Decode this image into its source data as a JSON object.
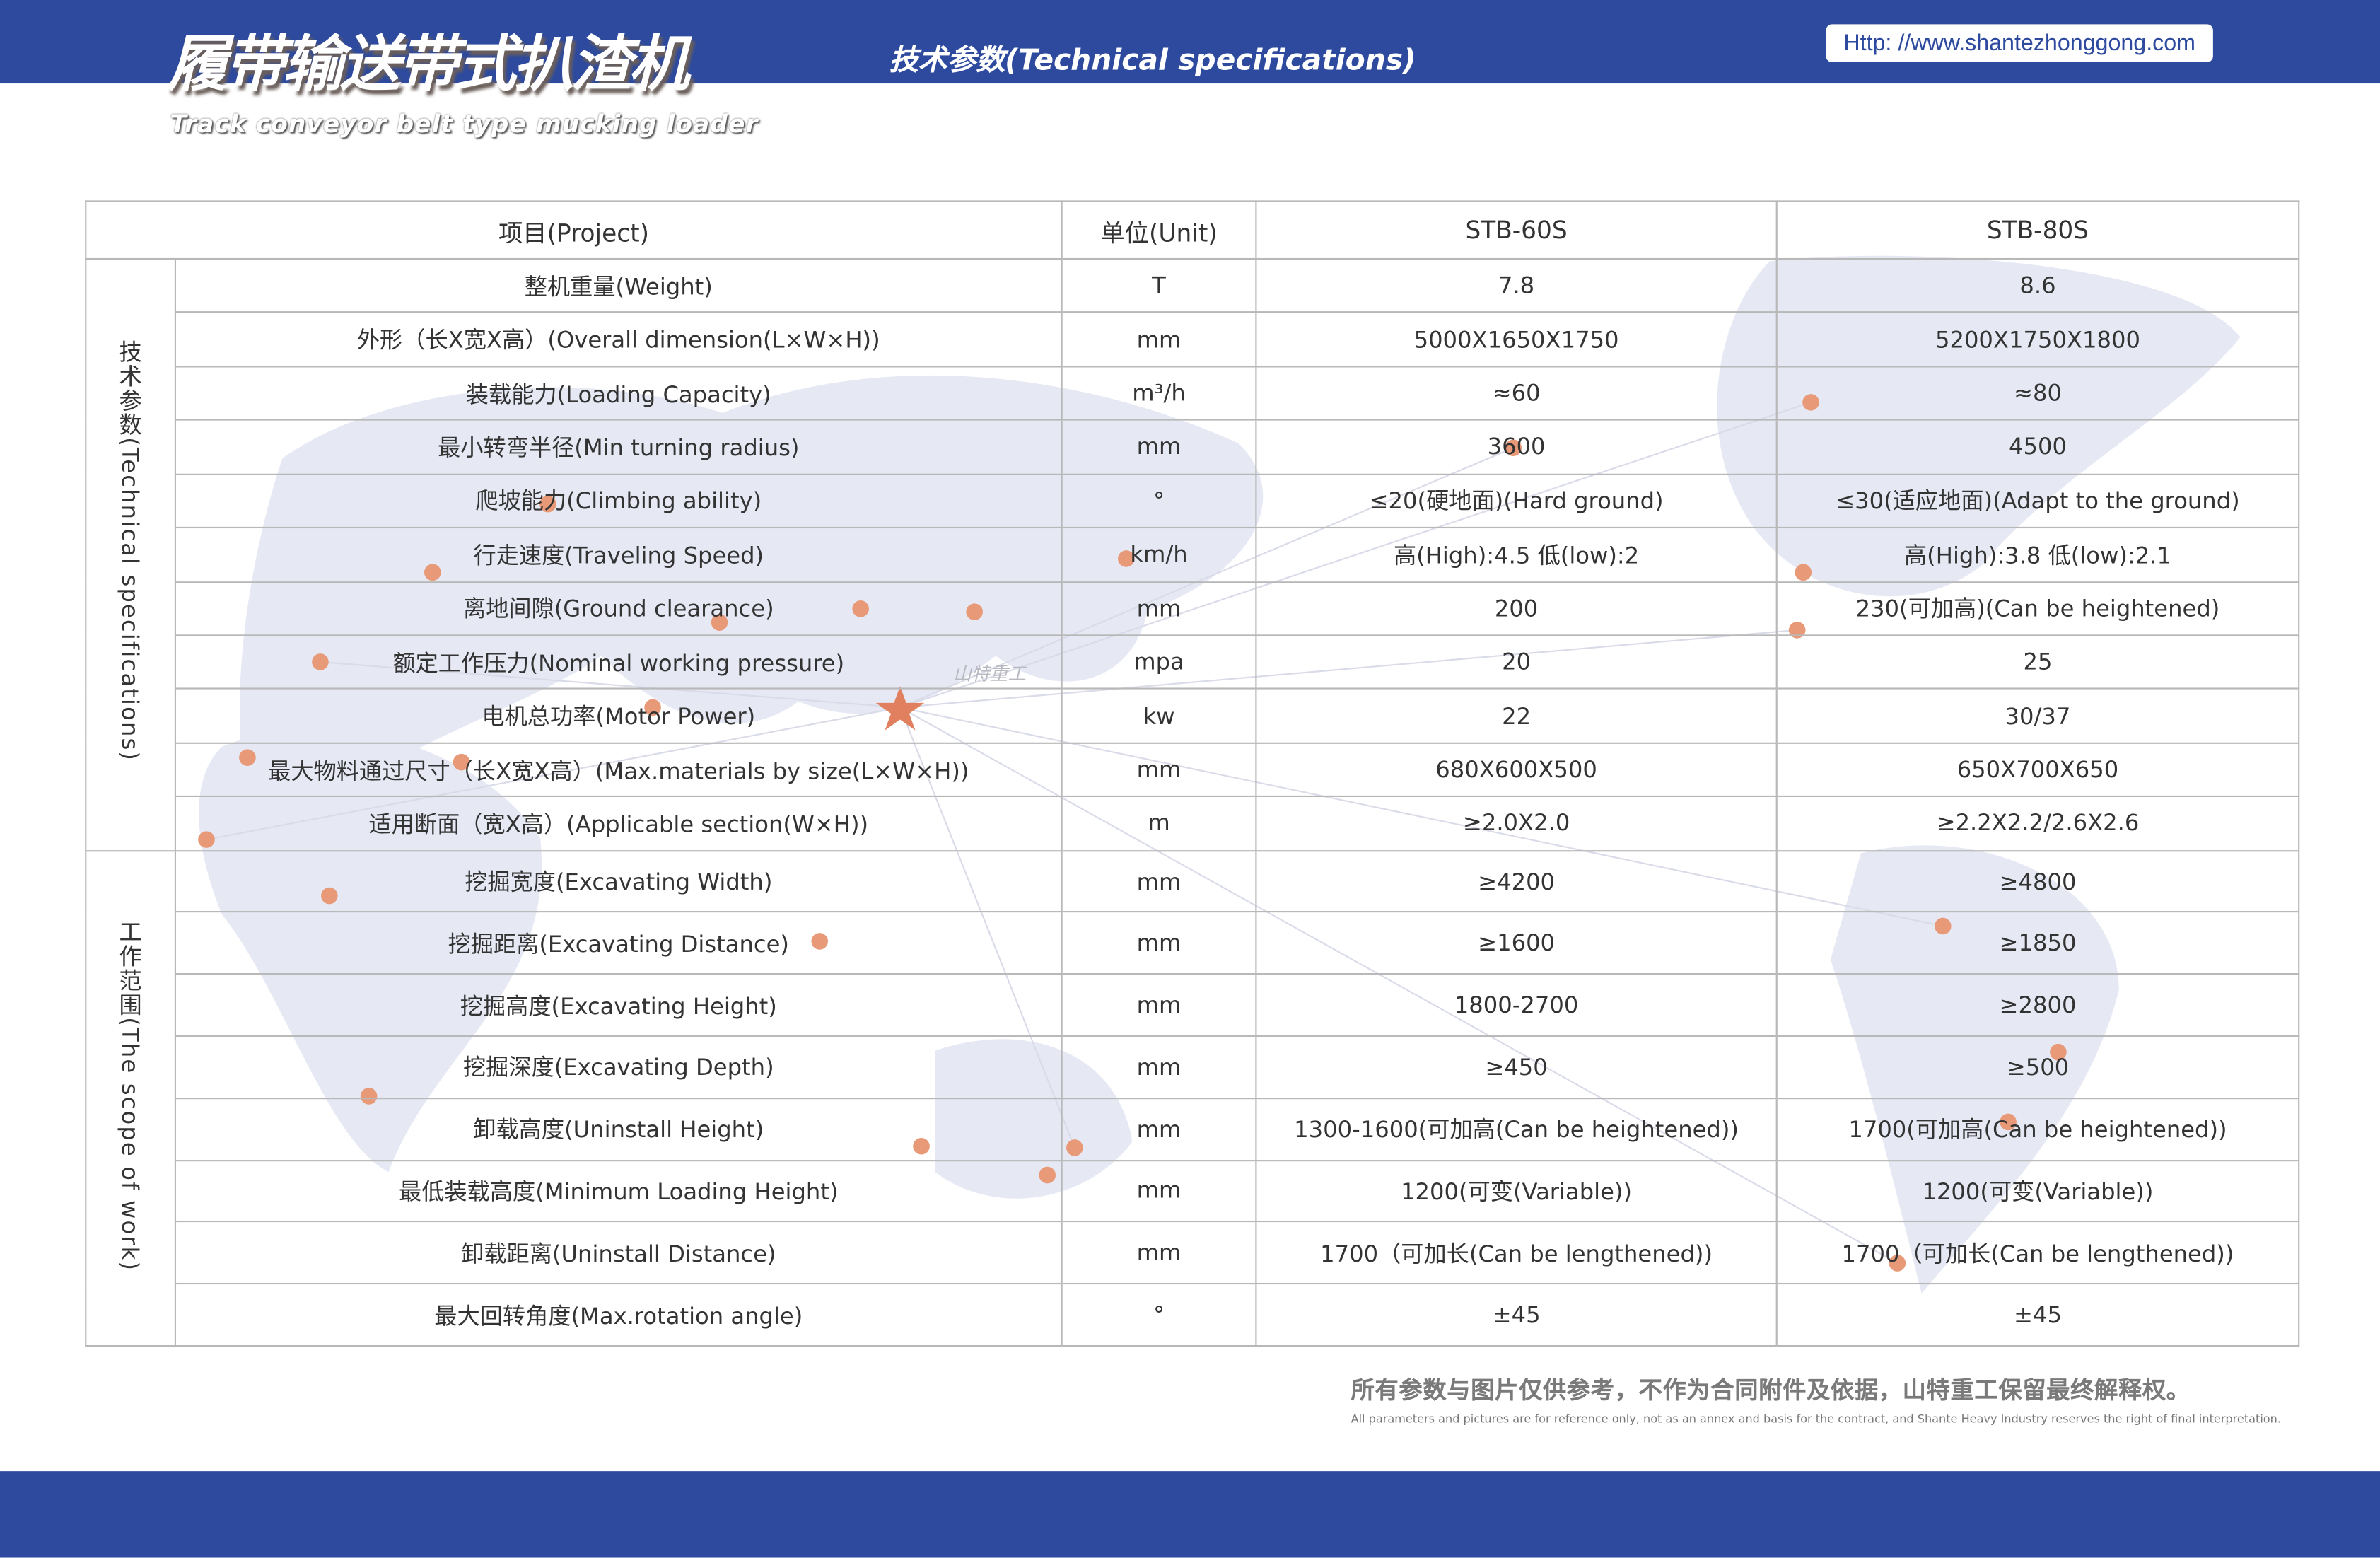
{
  "header": {
    "title_cn": "履带输送带式扒渣机",
    "title_en": "Track conveyor belt type mucking loader",
    "subtitle": "技术参数(Technical specifications)",
    "url": "Http: //www.shantezhonggong.com",
    "watermark": "山特重工"
  },
  "colors": {
    "brand_blue": "#2d4a9e",
    "map": "#e6e8f4",
    "dot": "#e89a78"
  },
  "table": {
    "headers": [
      "项目(Project)",
      "单位(Unit)",
      "STB-60S",
      "STB-80S"
    ],
    "groups": [
      {
        "label": "技术参数(Technical specifications)",
        "rows": [
          [
            "整机重量(Weight)",
            "T",
            "7.8",
            "8.6"
          ],
          [
            "外形（长X宽X高）(Overall dimension(L×W×H))",
            "mm",
            "5000X1650X1750",
            "5200X1750X1800"
          ],
          [
            "装载能力(Loading Capacity)",
            "m³/h",
            "≈60",
            "≈80"
          ],
          [
            "最小转弯半径(Min turning radius)",
            "mm",
            "3600",
            "4500"
          ],
          [
            "爬坡能力(Climbing ability)",
            "°",
            "≤20(硬地面)(Hard ground)",
            "≤30(适应地面)(Adapt to the ground)"
          ],
          [
            "行走速度(Traveling Speed)",
            "km/h",
            "高(High):4.5 低(low):2",
            "高(High):3.8 低(low):2.1"
          ],
          [
            "离地间隙(Ground clearance)",
            "mm",
            "200",
            "230(可加高)(Can be heightened)"
          ],
          [
            "额定工作压力(Nominal working pressure)",
            "mpa",
            "20",
            "25"
          ],
          [
            "电机总功率(Motor Power)",
            "kw",
            "22",
            "30/37"
          ],
          [
            "最大物料通过尺寸（长X宽X高）(Max.materials by size(L×W×H))",
            "mm",
            "680X600X500",
            "650X700X650"
          ],
          [
            "适用断面（宽X高）(Applicable section(W×H))",
            "m",
            "≥2.0X2.0",
            "≥2.2X2.2/2.6X2.6"
          ]
        ]
      },
      {
        "label": "工作范围(The scope of work)",
        "rows": [
          [
            "挖掘宽度(Excavating Width)",
            "mm",
            "≥4200",
            "≥4800"
          ],
          [
            "挖掘距离(Excavating Distance)",
            "mm",
            "≥1600",
            "≥1850"
          ],
          [
            "挖掘高度(Excavating Height)",
            "mm",
            "1800-2700",
            "≥2800"
          ],
          [
            "挖掘深度(Excavating Depth)",
            "mm",
            "≥450",
            "≥500"
          ],
          [
            "卸载高度(Uninstall Height)",
            "mm",
            "1300-1600(可加高(Can be heightened))",
            "1700(可加高(Can be heightened))"
          ],
          [
            "最低装载高度(Minimum Loading Height)",
            "mm",
            "1200(可变(Variable))",
            "1200(可变(Variable))"
          ],
          [
            "卸载距离(Uninstall Distance)",
            "mm",
            "1700（可加长(Can be lengthened))",
            "1700（可加长(Can be lengthened))"
          ],
          [
            "最大回转角度(Max.rotation angle)",
            "°",
            "±45",
            "±45"
          ]
        ]
      }
    ]
  },
  "footer": {
    "cn": "所有参数与图片仅供参考，不作为合同附件及依据，山特重工保留最终解释权。",
    "en": "All parameters and pictures are for reference only, not as an annex and basis for the contract, and Shante Heavy Industry reserves the right of final interpretation."
  }
}
